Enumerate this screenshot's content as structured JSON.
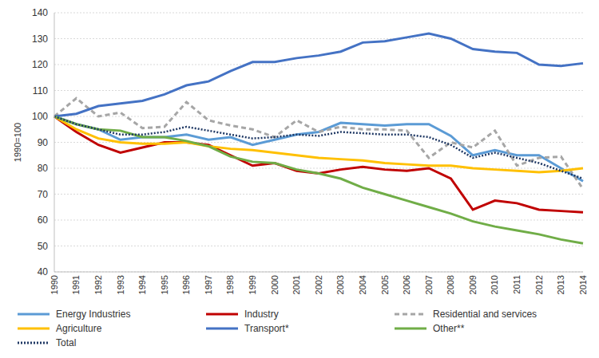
{
  "chart_data": {
    "type": "line",
    "y_label": "1990=100",
    "categories": [
      "1990",
      "1991",
      "1992",
      "1993",
      "1994",
      "1995",
      "1996",
      "1997",
      "1998",
      "1999",
      "2000",
      "2001",
      "2002",
      "2003",
      "2004",
      "2005",
      "2006",
      "2007",
      "2008",
      "2009",
      "2010",
      "2011",
      "2012",
      "2013",
      "2014"
    ],
    "ylim": [
      40,
      140
    ],
    "yticks": [
      40,
      50,
      60,
      70,
      80,
      90,
      100,
      110,
      120,
      130,
      140
    ],
    "grid": true,
    "legend": "bottom",
    "series": [
      {
        "name": "Energy Industries",
        "color": "#5b9bd5",
        "line_style": "solid",
        "values": [
          100,
          97,
          95,
          91,
          92,
          92,
          93,
          91,
          92,
          89,
          91,
          93,
          94,
          97.5,
          97,
          96.5,
          97,
          97,
          92.5,
          85,
          87,
          85,
          85,
          80,
          75
        ]
      },
      {
        "name": "Industry",
        "color": "#c00000",
        "line_style": "solid",
        "values": [
          100,
          94,
          89,
          86,
          88,
          90,
          90,
          89,
          85,
          81,
          82,
          79,
          78,
          79.5,
          80.5,
          79.5,
          79,
          80,
          76,
          64,
          67.5,
          66.5,
          64,
          63.5,
          63
        ]
      },
      {
        "name": "Residential and services",
        "color": "#a6a6a6",
        "line_style": "dashed",
        "values": [
          100,
          107,
          100,
          101.5,
          95.5,
          96,
          105.5,
          98.5,
          96.5,
          95,
          92,
          98.5,
          94,
          96,
          95,
          95,
          94.5,
          84,
          90,
          88,
          94.5,
          81,
          84,
          84.5,
          72
        ]
      },
      {
        "name": "Agriculture",
        "color": "#ffc000",
        "line_style": "solid",
        "values": [
          100,
          95,
          91.5,
          90,
          89.5,
          89.5,
          90,
          88.5,
          87.5,
          87,
          86,
          85,
          84,
          83.5,
          83,
          82,
          81.5,
          81,
          81,
          80,
          79.5,
          79,
          78.5,
          79,
          80
        ]
      },
      {
        "name": "Transport*",
        "color": "#4472c4",
        "line_style": "solid",
        "values": [
          100,
          101,
          104,
          105,
          106,
          108.5,
          112,
          113.5,
          117.5,
          121,
          121,
          122.5,
          123.5,
          125,
          128.5,
          129,
          130.5,
          132,
          130,
          126,
          125,
          124.5,
          120,
          119.5,
          120.5
        ]
      },
      {
        "name": "Other**",
        "color": "#70ad47",
        "line_style": "solid",
        "values": [
          100,
          97,
          95,
          94.5,
          92,
          92,
          90.5,
          88.5,
          84.5,
          82.5,
          82,
          79.5,
          78,
          76,
          72.5,
          70,
          67.5,
          65,
          62.5,
          59.5,
          57.5,
          56,
          54.5,
          52.5,
          51
        ]
      },
      {
        "name": "Total",
        "color": "#1f3864",
        "line_style": "dotted",
        "values": [
          100,
          97,
          95,
          93,
          93,
          94,
          96,
          94.5,
          93,
          91.5,
          92,
          93,
          92.5,
          94,
          93.5,
          93,
          93,
          92,
          89,
          84,
          86,
          84,
          82,
          79,
          76
        ]
      }
    ]
  }
}
